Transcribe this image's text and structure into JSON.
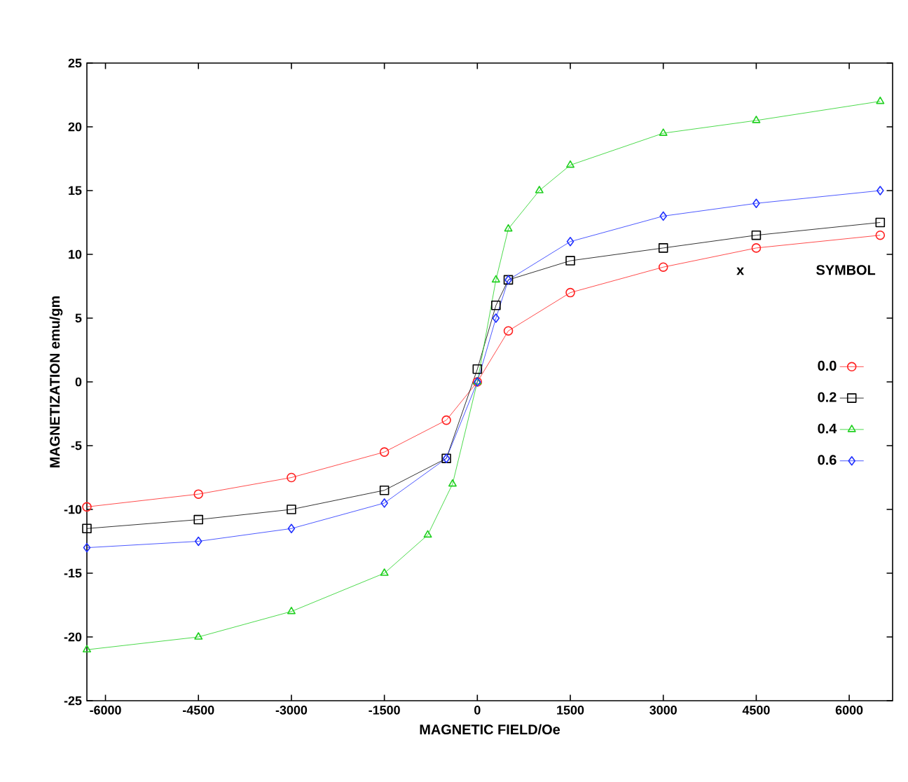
{
  "chart_data": {
    "type": "line",
    "xlabel": "MAGNETIC FIELD/Oe",
    "ylabel": "MAGNETIZATION  emu/gm",
    "legend_title": "x",
    "annotations": [
      "SYMBOL"
    ],
    "xlim": [
      -6300,
      6700
    ],
    "ylim": [
      -25,
      25
    ],
    "xticks": [
      -6000,
      -4500,
      -3000,
      -1500,
      0,
      1500,
      3000,
      4500,
      6000
    ],
    "yticks": [
      -25,
      -20,
      -15,
      -10,
      -5,
      0,
      5,
      10,
      15,
      20,
      25
    ],
    "grid": false,
    "legend": "right",
    "series": [
      {
        "name": "0.0",
        "color": "#ff2020",
        "marker": "circle",
        "x": [
          -6300,
          -4500,
          -3000,
          -1500,
          -500,
          0,
          500,
          1500,
          3000,
          4500,
          6500
        ],
        "values": [
          -9.8,
          -8.8,
          -7.5,
          -5.5,
          -3,
          0,
          4,
          7,
          9,
          10.5,
          11.5
        ]
      },
      {
        "name": "0.2",
        "color": "#000000",
        "marker": "square",
        "x": [
          -6300,
          -4500,
          -3000,
          -1500,
          -500,
          0,
          300,
          500,
          1500,
          3000,
          4500,
          6500
        ],
        "values": [
          -11.5,
          -10.8,
          -10,
          -8.5,
          -6,
          1,
          6,
          8,
          9.5,
          10.5,
          11.5,
          12.5
        ]
      },
      {
        "name": "0.4",
        "color": "#20d020",
        "marker": "triangle",
        "x": [
          -6300,
          -4500,
          -3000,
          -1500,
          -800,
          -400,
          0,
          300,
          500,
          1000,
          1500,
          3000,
          4500,
          6500
        ],
        "values": [
          -21,
          -20,
          -18,
          -15,
          -12,
          -8,
          0,
          8,
          12,
          15,
          17,
          19.5,
          20.5,
          22
        ]
      },
      {
        "name": "0.6",
        "color": "#2030ff",
        "marker": "diamond",
        "x": [
          -6300,
          -4500,
          -3000,
          -1500,
          -500,
          0,
          300,
          500,
          1500,
          3000,
          4500,
          6500
        ],
        "values": [
          -13,
          -12.5,
          -11.5,
          -9.5,
          -6,
          0,
          5,
          8,
          11,
          13,
          14,
          15
        ]
      }
    ]
  }
}
